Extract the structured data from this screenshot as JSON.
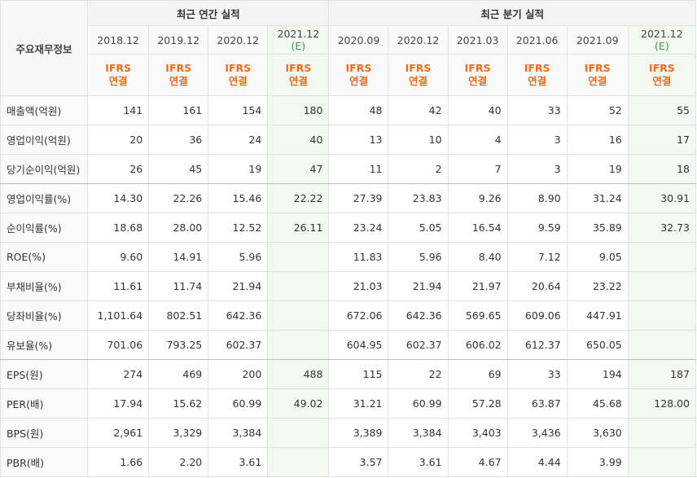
{
  "header": {
    "row_label": "주요재무정보",
    "annual_title": "최근 연간 실적",
    "quarter_title": "최근 분기 실적",
    "ifrs": "IFRS",
    "basis": "연결"
  },
  "periods": [
    {
      "label": "2018.12",
      "est": ""
    },
    {
      "label": "2019.12",
      "est": ""
    },
    {
      "label": "2020.12",
      "est": ""
    },
    {
      "label": "2021.12",
      "est": "(E)"
    },
    {
      "label": "2020.09",
      "est": ""
    },
    {
      "label": "2020.12",
      "est": ""
    },
    {
      "label": "2021.03",
      "est": ""
    },
    {
      "label": "2021.06",
      "est": ""
    },
    {
      "label": "2021.09",
      "est": ""
    },
    {
      "label": "2021.12",
      "est": "(E)"
    }
  ],
  "rows": [
    {
      "label": "매출액(억원)",
      "values": [
        "141",
        "161",
        "154",
        "180",
        "48",
        "42",
        "40",
        "33",
        "52",
        "55"
      ]
    },
    {
      "label": "영업이익(억원)",
      "values": [
        "20",
        "36",
        "24",
        "40",
        "13",
        "10",
        "4",
        "3",
        "16",
        "17"
      ]
    },
    {
      "label": "당기순이익(억원)",
      "values": [
        "26",
        "45",
        "19",
        "47",
        "11",
        "2",
        "7",
        "3",
        "19",
        "18"
      ]
    },
    {
      "label": "영업이익률(%)",
      "values": [
        "14.30",
        "22.26",
        "15.46",
        "22.22",
        "27.39",
        "23.83",
        "9.26",
        "8.90",
        "31.24",
        "30.91"
      ]
    },
    {
      "label": "순이익률(%)",
      "values": [
        "18.68",
        "28.00",
        "12.52",
        "26.11",
        "23.24",
        "5.05",
        "16.54",
        "9.59",
        "35.89",
        "32.73"
      ]
    },
    {
      "label": "ROE(%)",
      "values": [
        "9.60",
        "14.91",
        "5.96",
        "",
        "11.83",
        "5.96",
        "8.40",
        "7.12",
        "9.05",
        ""
      ]
    },
    {
      "label": "부채비율(%)",
      "values": [
        "11.61",
        "11.74",
        "21.94",
        "",
        "21.03",
        "21.94",
        "21.97",
        "20.64",
        "23.22",
        ""
      ]
    },
    {
      "label": "당좌비율(%)",
      "values": [
        "1,101.64",
        "802.51",
        "642.36",
        "",
        "672.06",
        "642.36",
        "569.65",
        "609.06",
        "447.91",
        ""
      ]
    },
    {
      "label": "유보율(%)",
      "values": [
        "701.06",
        "793.25",
        "602.37",
        "",
        "604.95",
        "602.37",
        "606.02",
        "612.37",
        "650.05",
        ""
      ]
    },
    {
      "label": "EPS(원)",
      "values": [
        "274",
        "469",
        "200",
        "488",
        "115",
        "22",
        "69",
        "33",
        "194",
        "187"
      ]
    },
    {
      "label": "PER(배)",
      "values": [
        "17.94",
        "15.62",
        "60.99",
        "49.02",
        "31.21",
        "60.99",
        "57.28",
        "63.87",
        "45.68",
        "128.00"
      ]
    },
    {
      "label": "BPS(원)",
      "values": [
        "2,961",
        "3,329",
        "3,384",
        "",
        "3,389",
        "3,384",
        "3,403",
        "3,436",
        "3,630",
        ""
      ]
    },
    {
      "label": "PBR(배)",
      "values": [
        "1.66",
        "2.20",
        "3.61",
        "",
        "3.57",
        "3.61",
        "4.67",
        "4.44",
        "3.99",
        ""
      ]
    }
  ]
}
